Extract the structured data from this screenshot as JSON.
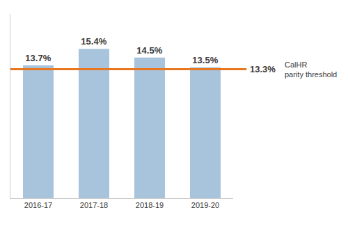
{
  "chart_data": {
    "type": "bar",
    "categories": [
      "2016-17",
      "2017-18",
      "2018-19",
      "2019-20"
    ],
    "values": [
      13.7,
      15.4,
      14.5,
      13.5
    ],
    "value_labels": [
      "13.7%",
      "15.4%",
      "14.5%",
      "13.5%"
    ],
    "data_labels": true,
    "color": "#a8c4dc",
    "ylim": [
      0,
      19
    ],
    "grid": false,
    "tick_labels": "x",
    "reference_lines": [
      {
        "value": 13.3,
        "label": "13.3%",
        "text": "CalHR\nparity threshold",
        "color": "#e87722"
      }
    ]
  }
}
